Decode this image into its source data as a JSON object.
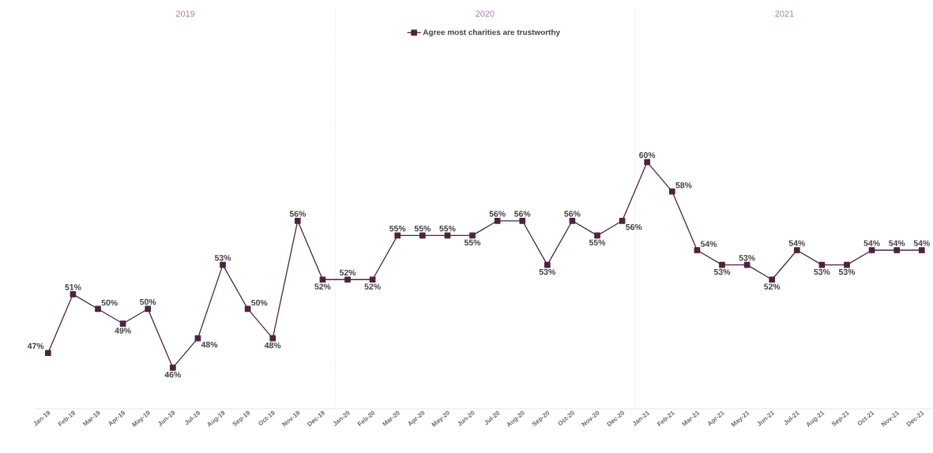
{
  "chart_data": {
    "type": "line",
    "categories": [
      "Jan-19",
      "Feb-19",
      "Mar-19",
      "Apr-19",
      "May-19",
      "Jun-19",
      "Jul-19",
      "Aug-19",
      "Sep-19",
      "Oct-19",
      "Nov-19",
      "Dec-19",
      "Jan-20",
      "Feb-20",
      "Mar-20",
      "Apr-20",
      "May-20",
      "Jun-20",
      "Jul-20",
      "Aug-20",
      "Sep-20",
      "Oct-20",
      "Nov-20",
      "Dec-20",
      "Jan-21",
      "Feb-21",
      "Mar-21",
      "Apr-21",
      "May-21",
      "Jun-21",
      "Jul-21",
      "Aug-21",
      "Sep-21",
      "Oct-21",
      "Nov-21",
      "Dec-21"
    ],
    "series": [
      {
        "name": "Agree most charities are trustworthy",
        "color": "#4d2340",
        "values": [
          47,
          51,
          50,
          49,
          50,
          46,
          48,
          53,
          50,
          48,
          56,
          52,
          52,
          52,
          55,
          55,
          55,
          55,
          56,
          56,
          53,
          56,
          55,
          56,
          60,
          58,
          54,
          53,
          53,
          52,
          54,
          53,
          53,
          54,
          54,
          54
        ],
        "value_labels": [
          "47%",
          "51%",
          "50%",
          "49%",
          "50%",
          "46%",
          "48%",
          "53%",
          "50%",
          "48%",
          "56%",
          "52%",
          "52%",
          "52%",
          "55%",
          "55%",
          "55%",
          "55%",
          "56%",
          "56%",
          "53%",
          "56%",
          "55%",
          "56%",
          "60%",
          "58%",
          "54%",
          "53%",
          "53%",
          "52%",
          "54%",
          "53%",
          "53%",
          "54%",
          "54%",
          "54%"
        ]
      }
    ],
    "annotations": [
      "2019",
      "2020",
      "2021"
    ],
    "legend": "top",
    "marker": "square",
    "line_style": "solid",
    "grid": false
  }
}
